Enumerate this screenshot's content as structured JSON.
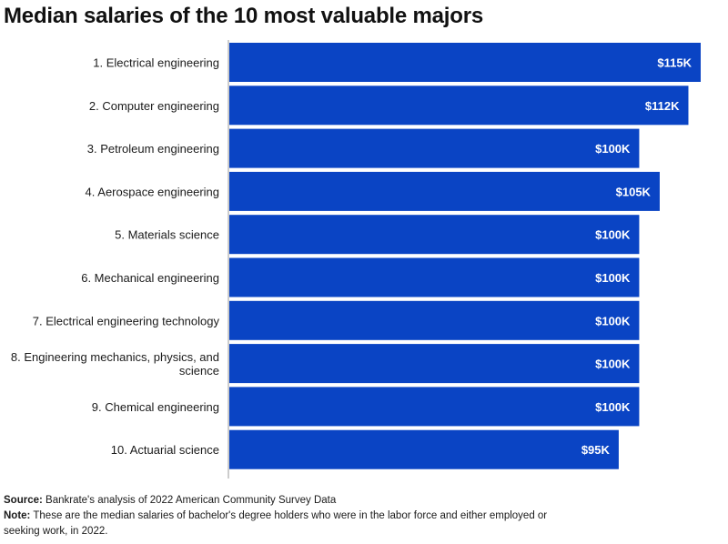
{
  "chart_data": {
    "type": "bar",
    "orientation": "horizontal",
    "title": "Median salaries of the 10 most valuable majors",
    "categories": [
      "1. Electrical engineering",
      "2. Computer engineering",
      "3. Petroleum engineering",
      "4. Aerospace engineering",
      "5. Materials science",
      "6. Mechanical engineering",
      "7. Electrical engineering technology",
      "8. Engineering mechanics, physics, and science",
      "9. Chemical engineering",
      "10. Actuarial science"
    ],
    "values": [
      115000,
      112000,
      100000,
      105000,
      100000,
      100000,
      100000,
      100000,
      100000,
      95000
    ],
    "data_labels": [
      "$115K",
      "$112K",
      "$100K",
      "$105K",
      "$100K",
      "$100K",
      "$100K",
      "$100K",
      "$100K",
      "$95K"
    ],
    "xlabel": "",
    "ylabel": "",
    "xlim": [
      0,
      115000
    ],
    "grid": false,
    "legend": "none",
    "bar_color": "#0a44c4"
  },
  "footer": {
    "source_label": "Source:",
    "source_text": "Bankrate's analysis of 2022 American Community Survey Data",
    "note_label": "Note:",
    "note_text": "These are the median salaries of bachelor's degree holders who were in the labor force and either employed or seeking work, in 2022."
  }
}
